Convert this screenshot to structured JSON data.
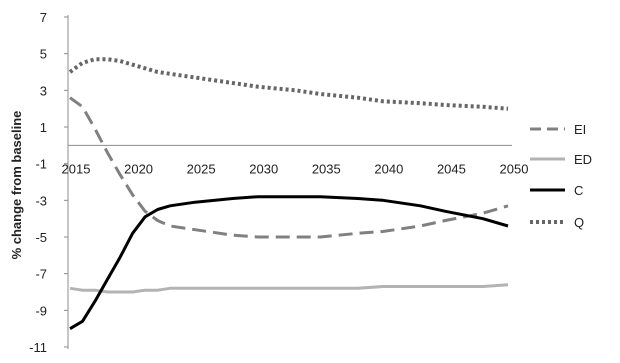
{
  "chart_data": {
    "type": "line",
    "title": "",
    "xlabel": "",
    "ylabel": "% change from baseline",
    "x_ticks": [
      "2015",
      "2020",
      "2025",
      "2030",
      "2035",
      "2040",
      "2045",
      "2050"
    ],
    "y_ticks": [
      "7",
      "5",
      "3",
      "1",
      "-1",
      "-3",
      "-5",
      "-7",
      "-9",
      "-11"
    ],
    "xlim": [
      2015,
      2050
    ],
    "ylim": [
      -11,
      7
    ],
    "grid": false,
    "legend_position": "right",
    "x": [
      2015,
      2016,
      2017,
      2018,
      2019,
      2020,
      2021,
      2022,
      2023,
      2025,
      2028,
      2030,
      2033,
      2035,
      2038,
      2040,
      2043,
      2045,
      2048,
      2050
    ],
    "series": [
      {
        "name": "EI",
        "style": "dashed",
        "color": "#808080",
        "values": [
          2.6,
          2.1,
          0.9,
          -0.4,
          -1.6,
          -2.7,
          -3.6,
          -4.1,
          -4.4,
          -4.6,
          -4.9,
          -5.0,
          -5.0,
          -5.0,
          -4.8,
          -4.7,
          -4.4,
          -4.1,
          -3.7,
          -3.3
        ]
      },
      {
        "name": "ED",
        "style": "solid",
        "color": "#b3b3b3",
        "values": [
          -7.8,
          -7.9,
          -7.9,
          -8.0,
          -8.0,
          -8.0,
          -7.9,
          -7.9,
          -7.8,
          -7.8,
          -7.8,
          -7.8,
          -7.8,
          -7.8,
          -7.8,
          -7.7,
          -7.7,
          -7.7,
          -7.7,
          -7.6
        ]
      },
      {
        "name": "C",
        "style": "solid",
        "color": "#000000",
        "values": [
          -10.0,
          -9.6,
          -8.5,
          -7.3,
          -6.1,
          -4.8,
          -3.9,
          -3.5,
          -3.3,
          -3.1,
          -2.9,
          -2.8,
          -2.8,
          -2.8,
          -2.9,
          -3.0,
          -3.3,
          -3.6,
          -4.0,
          -4.4
        ]
      },
      {
        "name": "Q",
        "style": "dotted",
        "color": "#666666",
        "values": [
          4.0,
          4.5,
          4.7,
          4.7,
          4.6,
          4.4,
          4.2,
          4.0,
          3.9,
          3.7,
          3.4,
          3.2,
          3.0,
          2.8,
          2.6,
          2.4,
          2.3,
          2.2,
          2.1,
          2.0
        ]
      }
    ]
  }
}
